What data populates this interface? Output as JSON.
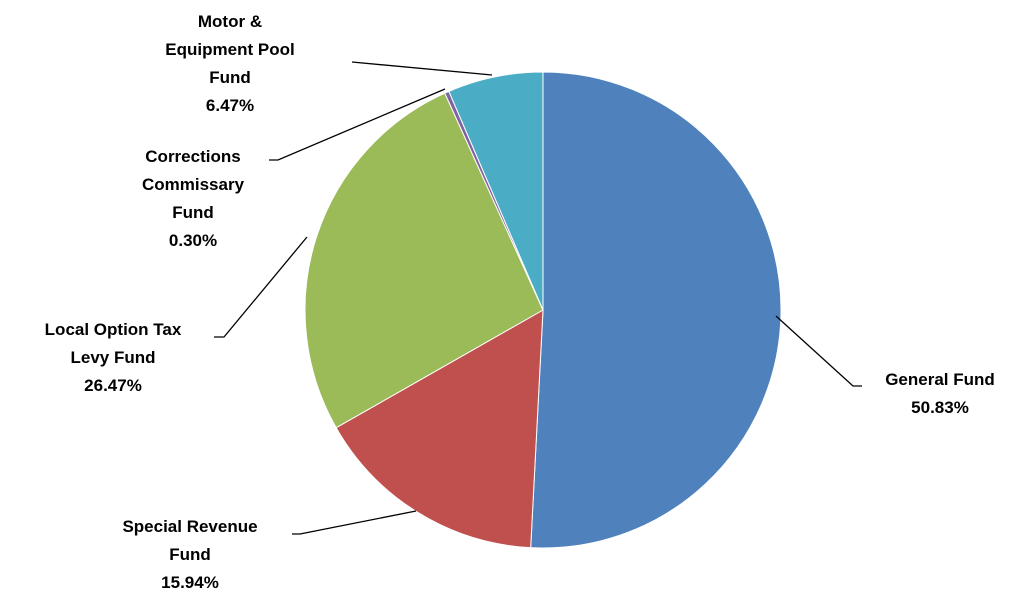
{
  "chart_data": {
    "type": "pie",
    "categories": [
      "General Fund",
      "Special Revenue Fund",
      "Local Option Tax Levy Fund",
      "Corrections Commissary Fund",
      "Motor & Equipment Pool Fund"
    ],
    "values": [
      50.83,
      15.94,
      26.47,
      0.3,
      6.47
    ],
    "value_labels": [
      "50.83%",
      "15.94%",
      "26.47%",
      "0.30%",
      "6.47%"
    ],
    "colors": [
      "#4f81bd",
      "#c0504d",
      "#9bbb59",
      "#8064a2",
      "#4bacc6"
    ]
  }
}
